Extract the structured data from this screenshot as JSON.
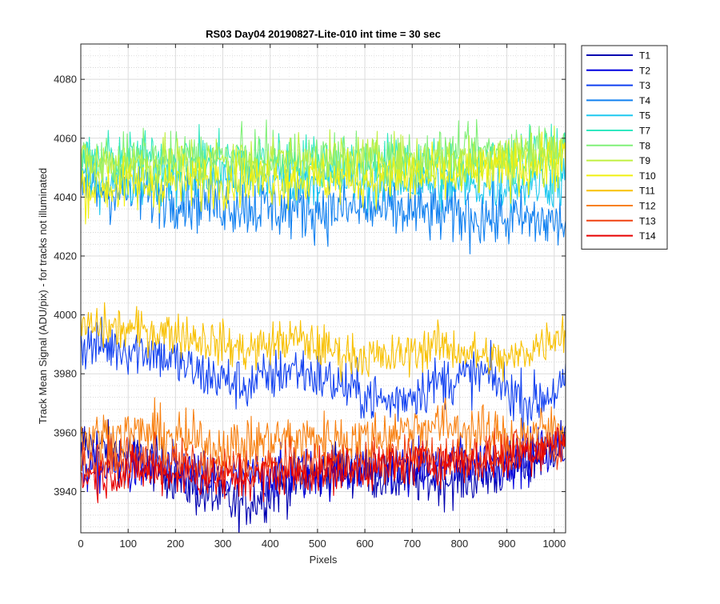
{
  "chart_data": {
    "type": "line",
    "title": "RS03 Day04 20190827-Lite-010 int time = 30 sec",
    "xlabel": "Pixels",
    "ylabel": "Track Mean Signal (ADU/pix) - for tracks not illuminated",
    "xlim": [
      0,
      1024
    ],
    "ylim": [
      3926,
      4092
    ],
    "xticks": [
      0,
      100,
      200,
      300,
      400,
      500,
      600,
      700,
      800,
      900,
      1000
    ],
    "yticks": [
      3940,
      3960,
      3980,
      4000,
      4020,
      4040,
      4060,
      4080
    ],
    "grid": true,
    "minor_grid": true,
    "legend_position": "outside-top-right",
    "series": [
      {
        "name": "T1",
        "color": "#0000b0",
        "baseline": [
          [
            0,
            3957
          ],
          [
            150,
            3950
          ],
          [
            250,
            3940
          ],
          [
            330,
            3935
          ],
          [
            450,
            3943
          ],
          [
            550,
            3948
          ],
          [
            650,
            3945
          ],
          [
            750,
            3944
          ],
          [
            850,
            3945
          ],
          [
            950,
            3950
          ],
          [
            1024,
            3958
          ]
        ],
        "noise": 6
      },
      {
        "name": "T2",
        "color": "#0000e0",
        "baseline": [
          [
            0,
            3948
          ],
          [
            150,
            3948
          ],
          [
            300,
            3944
          ],
          [
            450,
            3946
          ],
          [
            600,
            3948
          ],
          [
            750,
            3949
          ],
          [
            900,
            3951
          ],
          [
            1024,
            3955
          ]
        ],
        "noise": 6
      },
      {
        "name": "T3",
        "color": "#1040f0",
        "baseline": [
          [
            0,
            3990
          ],
          [
            150,
            3988
          ],
          [
            250,
            3980
          ],
          [
            350,
            3976
          ],
          [
            450,
            3982
          ],
          [
            550,
            3976
          ],
          [
            650,
            3970
          ],
          [
            750,
            3977
          ],
          [
            850,
            3980
          ],
          [
            950,
            3970
          ],
          [
            1024,
            3976
          ]
        ],
        "noise": 6
      },
      {
        "name": "T4",
        "color": "#1080f0",
        "baseline": [
          [
            0,
            4043
          ],
          [
            200,
            4040
          ],
          [
            400,
            4036
          ],
          [
            600,
            4036
          ],
          [
            800,
            4034
          ],
          [
            1024,
            4031
          ]
        ],
        "noise": 7
      },
      {
        "name": "T5",
        "color": "#1ec8f0",
        "baseline": [
          [
            0,
            4046
          ],
          [
            300,
            4046
          ],
          [
            600,
            4046
          ],
          [
            800,
            4044
          ],
          [
            1024,
            4045
          ]
        ],
        "noise": 6
      },
      {
        "name": "T7",
        "color": "#30e8c0",
        "baseline": [
          [
            0,
            4053
          ],
          [
            300,
            4053
          ],
          [
            600,
            4052
          ],
          [
            800,
            4051
          ],
          [
            1024,
            4055
          ]
        ],
        "noise": 6
      },
      {
        "name": "T8",
        "color": "#80f078",
        "baseline": [
          [
            0,
            4052
          ],
          [
            300,
            4053
          ],
          [
            600,
            4053
          ],
          [
            800,
            4054
          ],
          [
            1024,
            4058
          ]
        ],
        "noise": 6
      },
      {
        "name": "T9",
        "color": "#c0f040",
        "baseline": [
          [
            0,
            4051
          ],
          [
            300,
            4052
          ],
          [
            600,
            4052
          ],
          [
            800,
            4053
          ],
          [
            1024,
            4056
          ]
        ],
        "noise": 6
      },
      {
        "name": "T10",
        "color": "#f0f010",
        "baseline": [
          [
            0,
            4043
          ],
          [
            300,
            4046
          ],
          [
            600,
            4046
          ],
          [
            800,
            4047
          ],
          [
            1024,
            4052
          ]
        ],
        "noise": 6
      },
      {
        "name": "T11",
        "color": "#f8c000",
        "baseline": [
          [
            0,
            3996
          ],
          [
            200,
            3994
          ],
          [
            350,
            3988
          ],
          [
            450,
            3992
          ],
          [
            550,
            3987
          ],
          [
            650,
            3985
          ],
          [
            750,
            3990
          ],
          [
            900,
            3984
          ],
          [
            1024,
            3995
          ]
        ],
        "noise": 5
      },
      {
        "name": "T12",
        "color": "#f88010",
        "baseline": [
          [
            0,
            3958
          ],
          [
            150,
            3960
          ],
          [
            300,
            3955
          ],
          [
            450,
            3958
          ],
          [
            600,
            3958
          ],
          [
            750,
            3963
          ],
          [
            900,
            3958
          ],
          [
            1024,
            3962
          ]
        ],
        "noise": 6
      },
      {
        "name": "T13",
        "color": "#f04010",
        "baseline": [
          [
            0,
            3950
          ],
          [
            150,
            3951
          ],
          [
            300,
            3948
          ],
          [
            450,
            3949
          ],
          [
            600,
            3950
          ],
          [
            750,
            3952
          ],
          [
            900,
            3953
          ],
          [
            1024,
            3956
          ]
        ],
        "noise": 5
      },
      {
        "name": "T14",
        "color": "#e80000",
        "baseline": [
          [
            0,
            3945
          ],
          [
            150,
            3947
          ],
          [
            300,
            3944
          ],
          [
            450,
            3946
          ],
          [
            600,
            3948
          ],
          [
            750,
            3950
          ],
          [
            900,
            3951
          ],
          [
            1024,
            3958
          ]
        ],
        "noise": 5
      }
    ]
  }
}
